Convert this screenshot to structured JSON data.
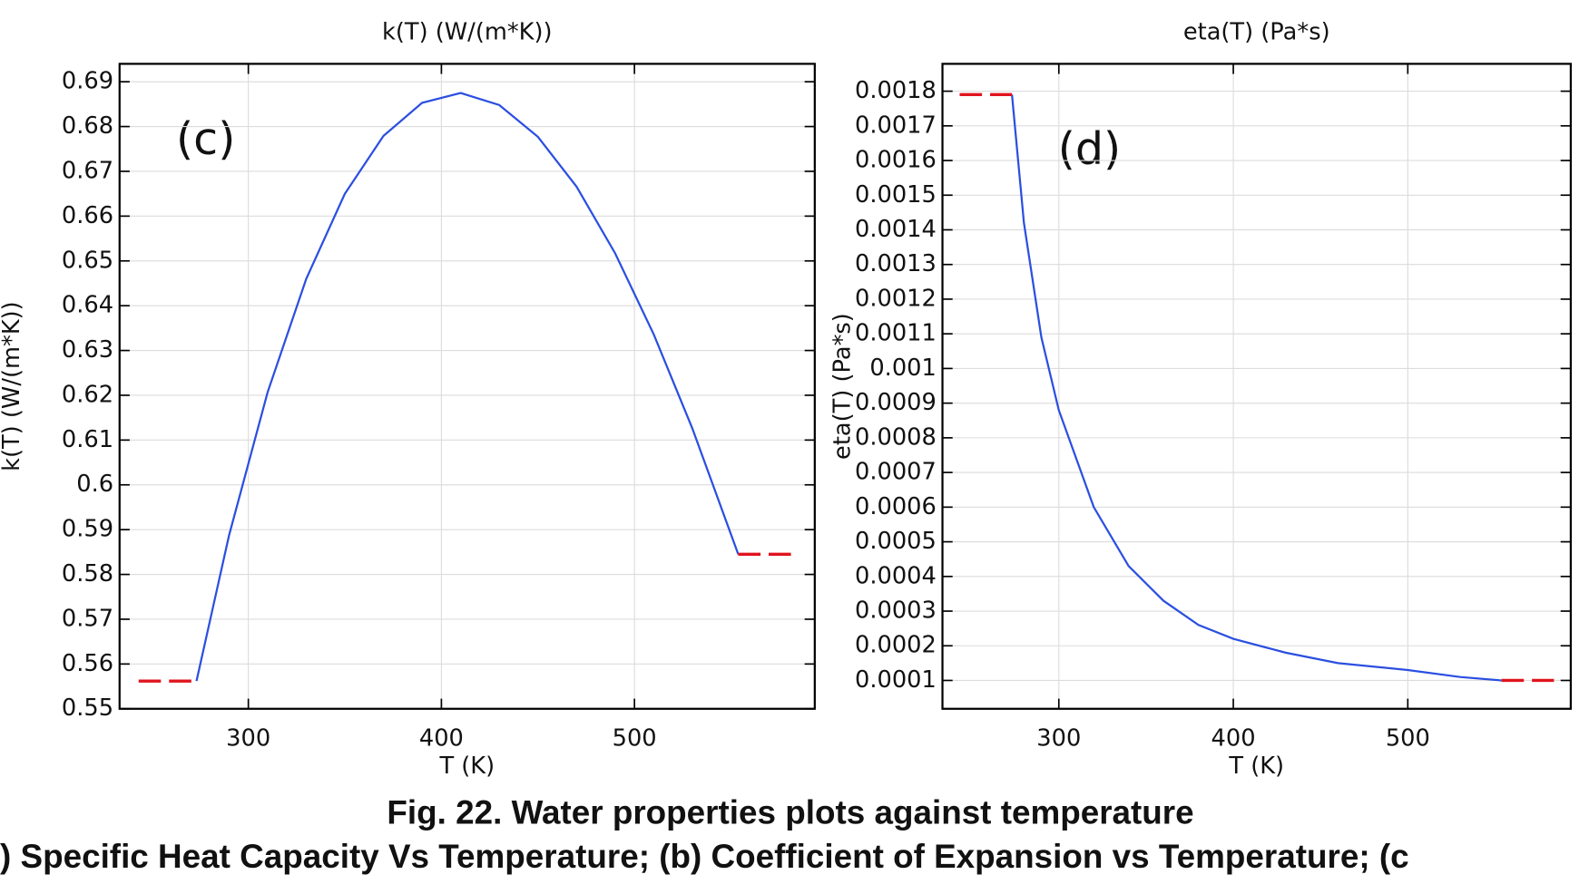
{
  "chart_data": [
    {
      "type": "line",
      "title": "k(T) (W/(m*K))",
      "x_label": "T (K)",
      "y_label": "k(T) (W/(m*K))",
      "annotation": "(c)",
      "xlim": [
        233.3,
        593.4
      ],
      "xticks": [
        300,
        400,
        500
      ],
      "ylim": [
        0.55,
        0.694
      ],
      "yticks": [
        0.55,
        0.56,
        0.57,
        0.58,
        0.59,
        0.6,
        0.61,
        0.62,
        0.63,
        0.64,
        0.65,
        0.66,
        0.67,
        0.68,
        0.69
      ],
      "grid": true,
      "series": [
        {
          "color": "#2b4fe0",
          "dashed": false,
          "x": [
            273.15,
            290,
            310,
            330,
            350,
            370,
            390,
            410,
            430,
            450,
            470,
            490,
            510,
            530,
            553.75
          ],
          "values": [
            0.5562,
            0.5887,
            0.6207,
            0.646,
            0.665,
            0.6779,
            0.6853,
            0.6875,
            0.6848,
            0.6777,
            0.6666,
            0.6517,
            0.6336,
            0.6126,
            0.5845
          ]
        },
        {
          "color": "#e0141e",
          "dashed": true,
          "x": [
            243.15,
            273.15
          ],
          "values": [
            0.5562,
            0.5562
          ]
        },
        {
          "color": "#e0141e",
          "dashed": true,
          "x": [
            553.75,
            583.75
          ],
          "values": [
            0.5845,
            0.5845
          ]
        }
      ]
    },
    {
      "type": "line",
      "title": "eta(T) (Pa*s)",
      "x_label": "T (K)",
      "y_label": "eta(T) (Pa*s)",
      "annotation": "(d)",
      "xlim": [
        233.3,
        593.4
      ],
      "xticks": [
        300,
        400,
        500
      ],
      "ylim": [
        1.82e-05,
        0.0018789
      ],
      "yticks": [
        0.0001,
        0.0002,
        0.0003,
        0.0004,
        0.0005,
        0.0006,
        0.0007,
        0.0008,
        0.0009,
        0.001,
        0.0011,
        0.0012,
        0.0013,
        0.0014,
        0.0015,
        0.0016,
        0.0017,
        0.0018
      ],
      "grid": true,
      "series": [
        {
          "color": "#2b4fe0",
          "dashed": false,
          "x": [
            273.15,
            280,
            290,
            300,
            320,
            340,
            360,
            380,
            400,
            430,
            460,
            500,
            530,
            553.75
          ],
          "values": [
            0.00179,
            0.00142,
            0.00109,
            0.00088,
            0.0006,
            0.00043,
            0.00033,
            0.00026,
            0.00022,
            0.00018,
            0.00015,
            0.00013,
            0.00011,
            0.0001
          ]
        },
        {
          "color": "#e0141e",
          "dashed": true,
          "x": [
            243.15,
            273.15
          ],
          "values": [
            0.00179,
            0.00179
          ]
        },
        {
          "color": "#e0141e",
          "dashed": true,
          "x": [
            553.75,
            583.75
          ],
          "values": [
            0.0001,
            0.0001
          ]
        }
      ]
    }
  ],
  "caption": {
    "line1": "Fig. 22. Water properties plots against temperature",
    "line2": ") Specific Heat Capacity Vs Temperature; (b) Coefficient of Expansion vs Temperature; (c"
  }
}
